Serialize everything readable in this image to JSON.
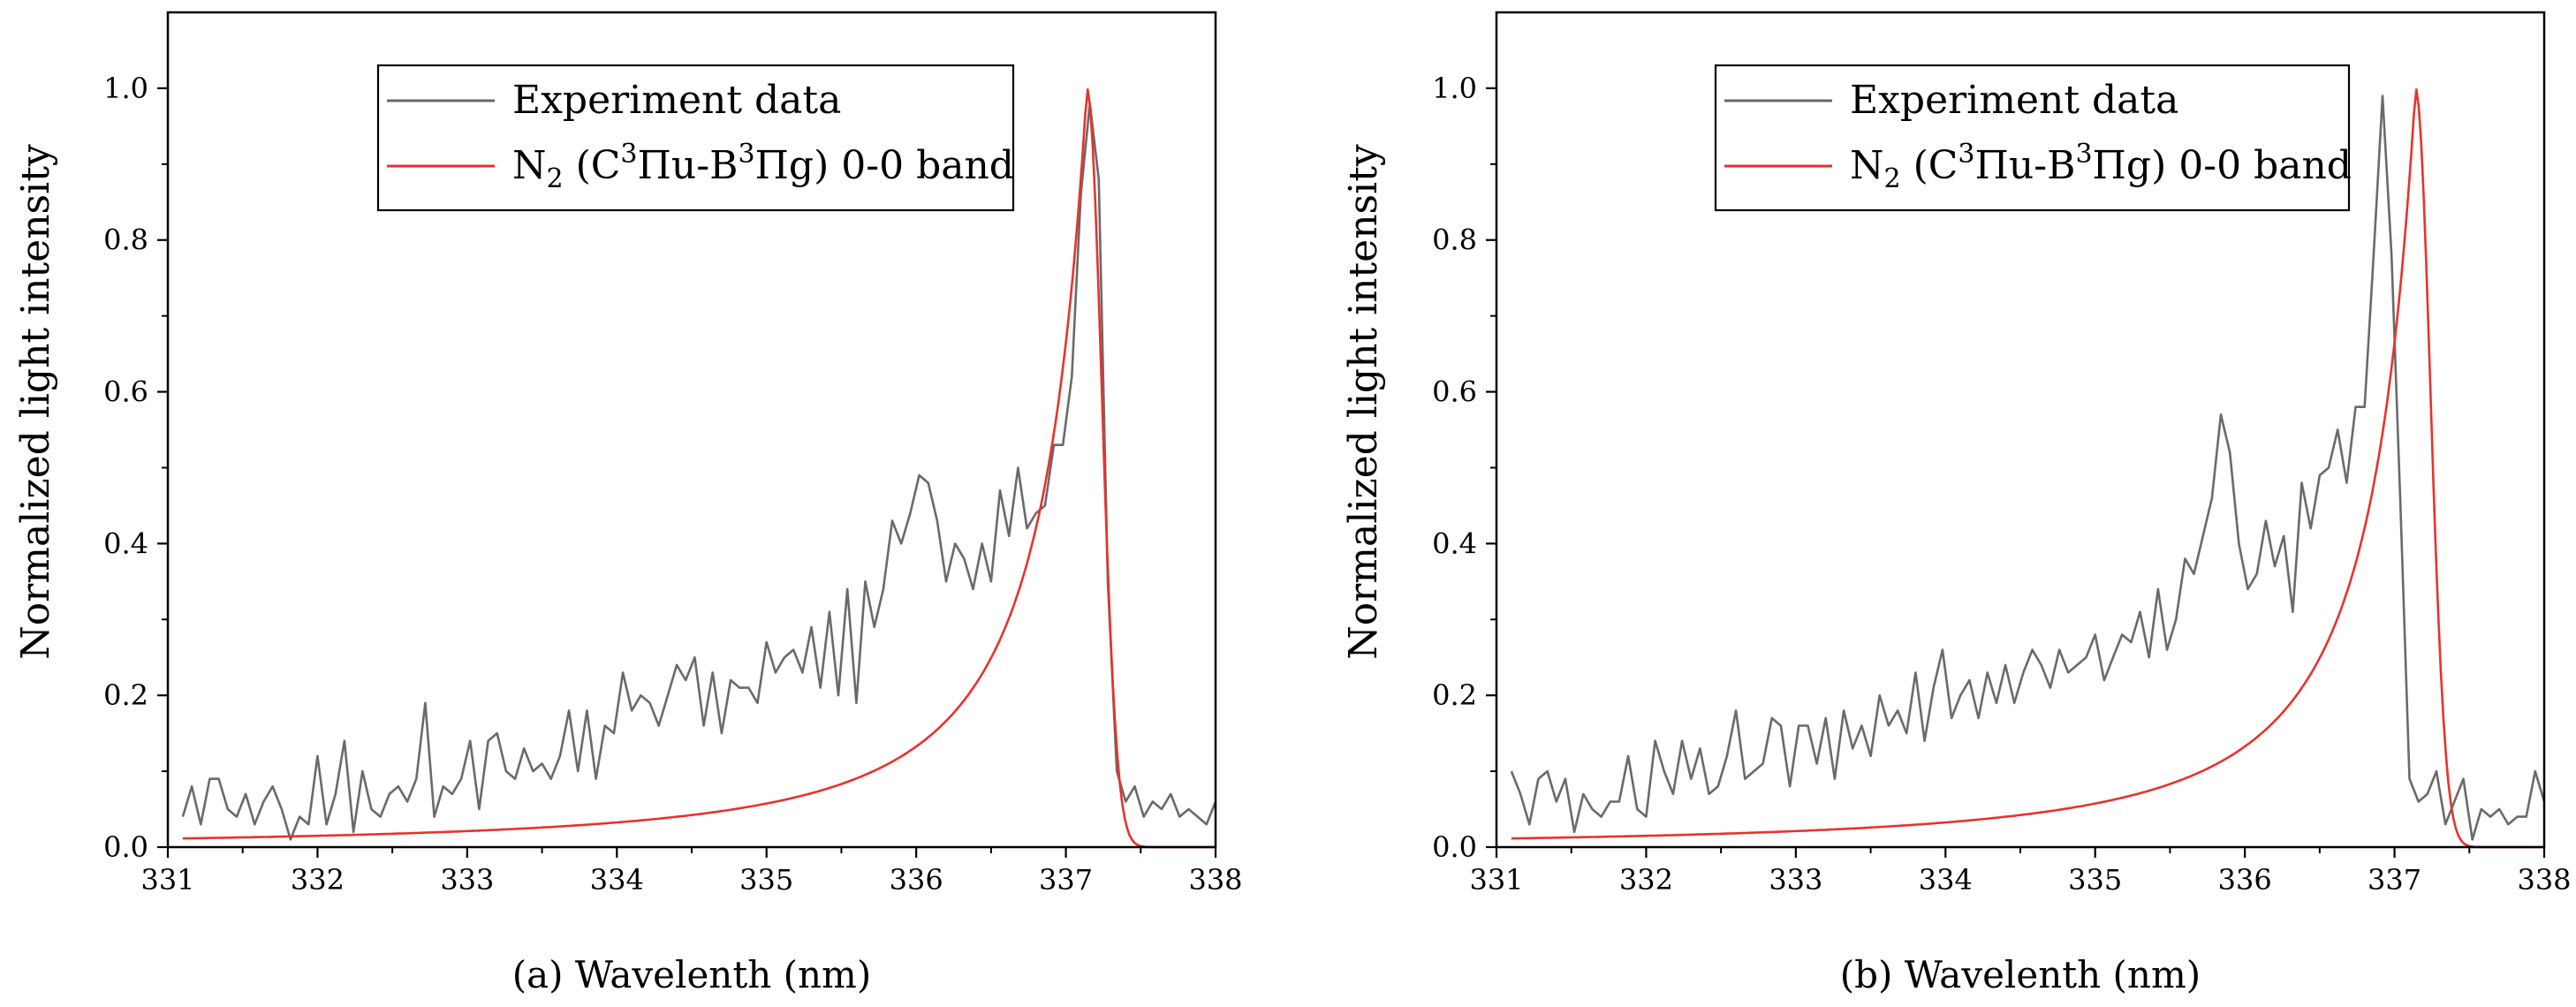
{
  "chart_data": [
    {
      "type": "line",
      "panel": "a",
      "caption": "(a) Wavelenth (nm)",
      "xlabel": "(a) Wavelenth (nm)",
      "ylabel": "Normalized light intensity",
      "xlim": [
        331,
        338
      ],
      "ylim": [
        0,
        1.1
      ],
      "xticks": [
        "331",
        "332",
        "333",
        "334",
        "335",
        "336",
        "337",
        "338"
      ],
      "yticks": [
        "0.0",
        "0.2",
        "0.4",
        "0.6",
        "0.8",
        "1.0"
      ],
      "grid": false,
      "legend_position": "top-right",
      "series": [
        {
          "name": "Experiment data",
          "color": "#6a6a6a",
          "x": [
            331.1,
            331.16,
            331.22,
            331.28,
            331.34,
            331.4,
            331.46,
            331.52,
            331.58,
            331.64,
            331.7,
            331.76,
            331.82,
            331.88,
            331.94,
            332.0,
            332.06,
            332.12,
            332.18,
            332.24,
            332.3,
            332.36,
            332.42,
            332.48,
            332.54,
            332.6,
            332.66,
            332.72,
            332.78,
            332.84,
            332.9,
            332.96,
            333.02,
            333.08,
            333.14,
            333.2,
            333.26,
            333.32,
            333.38,
            333.44,
            333.5,
            333.56,
            333.62,
            333.68,
            333.74,
            333.8,
            333.86,
            333.92,
            333.98,
            334.04,
            334.1,
            334.16,
            334.22,
            334.28,
            334.34,
            334.4,
            334.46,
            334.52,
            334.58,
            334.64,
            334.7,
            334.76,
            334.82,
            334.88,
            334.94,
            335.0,
            335.06,
            335.12,
            335.18,
            335.24,
            335.3,
            335.36,
            335.42,
            335.48,
            335.54,
            335.6,
            335.66,
            335.72,
            335.78,
            335.84,
            335.9,
            335.96,
            336.02,
            336.08,
            336.14,
            336.2,
            336.26,
            336.32,
            336.38,
            336.44,
            336.5,
            336.56,
            336.62,
            336.68,
            336.74,
            336.8,
            336.86,
            336.92,
            336.98,
            337.04,
            337.1,
            337.16,
            337.22,
            337.28,
            337.34,
            337.4,
            337.46,
            337.52,
            337.58,
            337.64,
            337.7,
            337.76,
            337.82,
            337.88,
            337.94,
            338.0
          ],
          "y": [
            0.04,
            0.08,
            0.03,
            0.09,
            0.09,
            0.05,
            0.04,
            0.07,
            0.03,
            0.06,
            0.08,
            0.05,
            0.01,
            0.04,
            0.03,
            0.12,
            0.03,
            0.07,
            0.14,
            0.02,
            0.1,
            0.05,
            0.04,
            0.07,
            0.08,
            0.06,
            0.09,
            0.19,
            0.04,
            0.08,
            0.07,
            0.09,
            0.14,
            0.05,
            0.14,
            0.15,
            0.1,
            0.09,
            0.13,
            0.1,
            0.11,
            0.09,
            0.12,
            0.18,
            0.1,
            0.18,
            0.09,
            0.16,
            0.15,
            0.23,
            0.18,
            0.2,
            0.19,
            0.16,
            0.2,
            0.24,
            0.22,
            0.25,
            0.16,
            0.23,
            0.15,
            0.22,
            0.21,
            0.21,
            0.19,
            0.27,
            0.23,
            0.25,
            0.26,
            0.23,
            0.29,
            0.21,
            0.31,
            0.2,
            0.34,
            0.19,
            0.35,
            0.29,
            0.34,
            0.43,
            0.4,
            0.44,
            0.49,
            0.48,
            0.43,
            0.35,
            0.4,
            0.38,
            0.34,
            0.4,
            0.35,
            0.47,
            0.41,
            0.5,
            0.42,
            0.44,
            0.45,
            0.53,
            0.53,
            0.62,
            0.86,
            0.98,
            0.88,
            0.35,
            0.1,
            0.06,
            0.08,
            0.04,
            0.06,
            0.05,
            0.07,
            0.04,
            0.05,
            0.04,
            0.03,
            0.06
          ]
        },
        {
          "name": "N2 (C3Πu-B3Πg) 0-0 band",
          "color": "#e8322d",
          "a": 0.55,
          "x0": 337.14,
          "sigma": 0.14
        }
      ]
    },
    {
      "type": "line",
      "panel": "b",
      "caption": "(b) Wavelenth (nm)",
      "xlabel": "(b) Wavelenth (nm)",
      "ylabel": "Normalized light intensity",
      "xlim": [
        331,
        338
      ],
      "ylim": [
        0,
        1.1
      ],
      "xticks": [
        "331",
        "332",
        "333",
        "334",
        "335",
        "336",
        "337",
        "338"
      ],
      "yticks": [
        "0.0",
        "0.2",
        "0.4",
        "0.6",
        "0.8",
        "1.0"
      ],
      "grid": false,
      "legend_position": "top-right",
      "series": [
        {
          "name": "Experiment data",
          "color": "#6a6a6a",
          "x": [
            331.1,
            331.16,
            331.22,
            331.28,
            331.34,
            331.4,
            331.46,
            331.52,
            331.58,
            331.64,
            331.7,
            331.76,
            331.82,
            331.88,
            331.94,
            332.0,
            332.06,
            332.12,
            332.18,
            332.24,
            332.3,
            332.36,
            332.42,
            332.48,
            332.54,
            332.6,
            332.66,
            332.72,
            332.78,
            332.84,
            332.9,
            332.96,
            333.02,
            333.08,
            333.14,
            333.2,
            333.26,
            333.32,
            333.38,
            333.44,
            333.5,
            333.56,
            333.62,
            333.68,
            333.74,
            333.8,
            333.86,
            333.92,
            333.98,
            334.04,
            334.1,
            334.16,
            334.22,
            334.28,
            334.34,
            334.4,
            334.46,
            334.52,
            334.58,
            334.64,
            334.7,
            334.76,
            334.82,
            334.88,
            334.94,
            335.0,
            335.06,
            335.12,
            335.18,
            335.24,
            335.3,
            335.36,
            335.42,
            335.48,
            335.54,
            335.6,
            335.66,
            335.72,
            335.78,
            335.84,
            335.9,
            335.96,
            336.02,
            336.08,
            336.14,
            336.2,
            336.26,
            336.32,
            336.38,
            336.44,
            336.5,
            336.56,
            336.62,
            336.68,
            336.74,
            336.8,
            336.86,
            336.92,
            336.98,
            337.04,
            337.1,
            337.16,
            337.22,
            337.28,
            337.34,
            337.4,
            337.46,
            337.52,
            337.58,
            337.64,
            337.7,
            337.76,
            337.82,
            337.88,
            337.94,
            338.0
          ],
          "y": [
            0.1,
            0.07,
            0.03,
            0.09,
            0.1,
            0.06,
            0.09,
            0.02,
            0.07,
            0.05,
            0.04,
            0.06,
            0.06,
            0.12,
            0.05,
            0.04,
            0.14,
            0.1,
            0.07,
            0.14,
            0.09,
            0.13,
            0.07,
            0.08,
            0.12,
            0.18,
            0.09,
            0.1,
            0.11,
            0.17,
            0.16,
            0.08,
            0.16,
            0.16,
            0.11,
            0.17,
            0.09,
            0.18,
            0.13,
            0.16,
            0.12,
            0.2,
            0.16,
            0.18,
            0.15,
            0.23,
            0.14,
            0.21,
            0.26,
            0.17,
            0.2,
            0.22,
            0.17,
            0.23,
            0.19,
            0.24,
            0.19,
            0.23,
            0.26,
            0.24,
            0.21,
            0.26,
            0.23,
            0.24,
            0.25,
            0.28,
            0.22,
            0.25,
            0.28,
            0.27,
            0.31,
            0.25,
            0.34,
            0.26,
            0.3,
            0.38,
            0.36,
            0.41,
            0.46,
            0.57,
            0.52,
            0.4,
            0.34,
            0.36,
            0.43,
            0.37,
            0.41,
            0.31,
            0.48,
            0.42,
            0.49,
            0.5,
            0.55,
            0.48,
            0.58,
            0.58,
            0.78,
            0.99,
            0.78,
            0.45,
            0.09,
            0.06,
            0.07,
            0.1,
            0.03,
            0.06,
            0.09,
            0.01,
            0.05,
            0.04,
            0.05,
            0.03,
            0.04,
            0.04,
            0.1,
            0.06
          ]
        },
        {
          "name": "N2 (C3Πu-B3Πg) 0-0 band",
          "color": "#e8322d",
          "a": 0.55,
          "x0": 337.14,
          "sigma": 0.14
        }
      ]
    }
  ],
  "legend": {
    "experiment_label": "Experiment data",
    "band_label": {
      "n": "N",
      "sub2": "2",
      "open": " (C",
      "sup1": "3",
      "pi_u": "Πu-B",
      "sup2": "3",
      "pi_g": "Πg) 0-0 band"
    }
  },
  "captions": {
    "a": "(a) Wavelenth (nm)",
    "b": "(b) Wavelenth (nm)"
  },
  "axis": {
    "ylabel": "Normalized light intensity"
  }
}
